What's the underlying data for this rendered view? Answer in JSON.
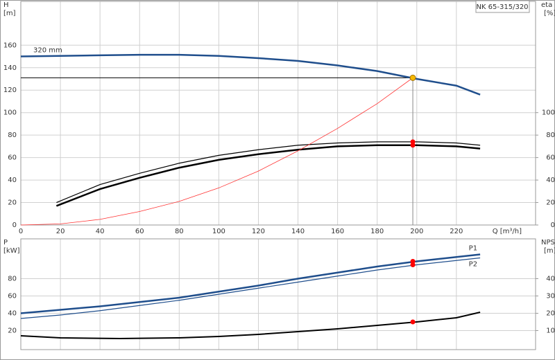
{
  "chart_data": [
    {
      "type": "line",
      "title": "NK 65-315/320",
      "xlabel": "Q [m³/h]",
      "ylabel": [
        "H",
        "[m]"
      ],
      "y2label": [
        "eta",
        "[%]"
      ],
      "xlim": [
        0,
        260
      ],
      "xticks": [
        0,
        20,
        40,
        60,
        80,
        100,
        120,
        140,
        160,
        180,
        200,
        220
      ],
      "ylim": [
        0,
        199
      ],
      "yticks": [
        0,
        20,
        40,
        60,
        80,
        100,
        120,
        140,
        160
      ],
      "y2lim": [
        0,
        199
      ],
      "y2ticks": [
        0,
        20,
        40,
        60,
        80,
        100
      ],
      "grid": true,
      "series": [
        {
          "name": "320 mm",
          "color": "#1f4e8c",
          "width": 2.5,
          "x": [
            0,
            20,
            40,
            60,
            80,
            100,
            120,
            140,
            160,
            180,
            200,
            220,
            232
          ],
          "values": [
            150,
            150.5,
            151,
            151.5,
            151.5,
            150.5,
            148.5,
            146,
            142,
            137,
            130,
            124,
            116
          ]
        },
        {
          "color": "#000000",
          "width": 1.2,
          "axis": "y2",
          "x": [
            18,
            40,
            60,
            80,
            100,
            120,
            140,
            160,
            180,
            200,
            220,
            232
          ],
          "values": [
            20,
            36,
            46,
            55,
            62,
            67,
            71,
            73,
            74,
            74,
            73,
            71
          ]
        },
        {
          "color": "#000000",
          "width": 2.5,
          "axis": "y2",
          "x": [
            18,
            40,
            60,
            80,
            100,
            120,
            140,
            160,
            180,
            200,
            220,
            232
          ],
          "values": [
            17,
            32,
            42,
            51,
            58,
            63,
            67,
            70,
            71,
            71,
            70,
            68
          ]
        },
        {
          "color": "#ff3030",
          "width": 0.8,
          "x": [
            0,
            20,
            40,
            60,
            80,
            100,
            120,
            140,
            160,
            180,
            198
          ],
          "values": [
            0,
            1,
            5,
            12,
            21,
            33,
            48,
            66,
            86,
            108,
            131
          ]
        }
      ],
      "duty_point": {
        "x": 198,
        "values": [
          131
        ],
        "color": "#f5b800"
      },
      "points": [
        {
          "x": 198,
          "values": [
            74
          ],
          "axis": "y2",
          "color": "#ff0000"
        },
        {
          "x": 198,
          "values": [
            71
          ],
          "axis": "y2",
          "color": "#ff0000"
        }
      ]
    },
    {
      "type": "line",
      "ylabel": [
        "P",
        "[kW]"
      ],
      "y2label": [
        "NPSH",
        "[m]"
      ],
      "xlim": [
        0,
        260
      ],
      "xticks": [
        0,
        20,
        40,
        60,
        80,
        100,
        120,
        140,
        160,
        180,
        200,
        220
      ],
      "ylim": [
        -2,
        126
      ],
      "yticks": [
        20,
        40,
        60,
        80
      ],
      "y2lim": [
        -1,
        63
      ],
      "y2ticks": [
        10,
        20,
        30,
        40
      ],
      "grid": true,
      "series": [
        {
          "name": "P1",
          "color": "#1f4e8c",
          "width": 2.5,
          "x": [
            0,
            20,
            40,
            60,
            80,
            100,
            120,
            140,
            160,
            180,
            200,
            220,
            232
          ],
          "values": [
            40,
            44,
            48,
            53,
            58,
            65,
            72,
            80,
            87,
            94,
            100,
            105,
            108
          ]
        },
        {
          "name": "P2",
          "color": "#1f4e8c",
          "width": 1.2,
          "x": [
            0,
            20,
            40,
            60,
            80,
            100,
            120,
            140,
            160,
            180,
            200,
            220,
            232
          ],
          "values": [
            34,
            38,
            43,
            49,
            55,
            62,
            69,
            76,
            83,
            90,
            96,
            101,
            104
          ]
        },
        {
          "color": "#000000",
          "width": 2,
          "axis": "y2",
          "x": [
            0,
            20,
            50,
            80,
            100,
            120,
            140,
            160,
            180,
            200,
            220,
            232
          ],
          "values": [
            7,
            5.8,
            5.4,
            5.8,
            6.6,
            7.8,
            9.4,
            11,
            13,
            15,
            17.4,
            20.6
          ]
        }
      ],
      "points": [
        {
          "x": 198,
          "values": [
            100
          ],
          "color": "#ff0000"
        },
        {
          "x": 198,
          "values": [
            96
          ],
          "color": "#ff0000"
        },
        {
          "x": 198,
          "values": [
            15
          ],
          "axis": "y2",
          "color": "#ff0000"
        }
      ]
    }
  ]
}
